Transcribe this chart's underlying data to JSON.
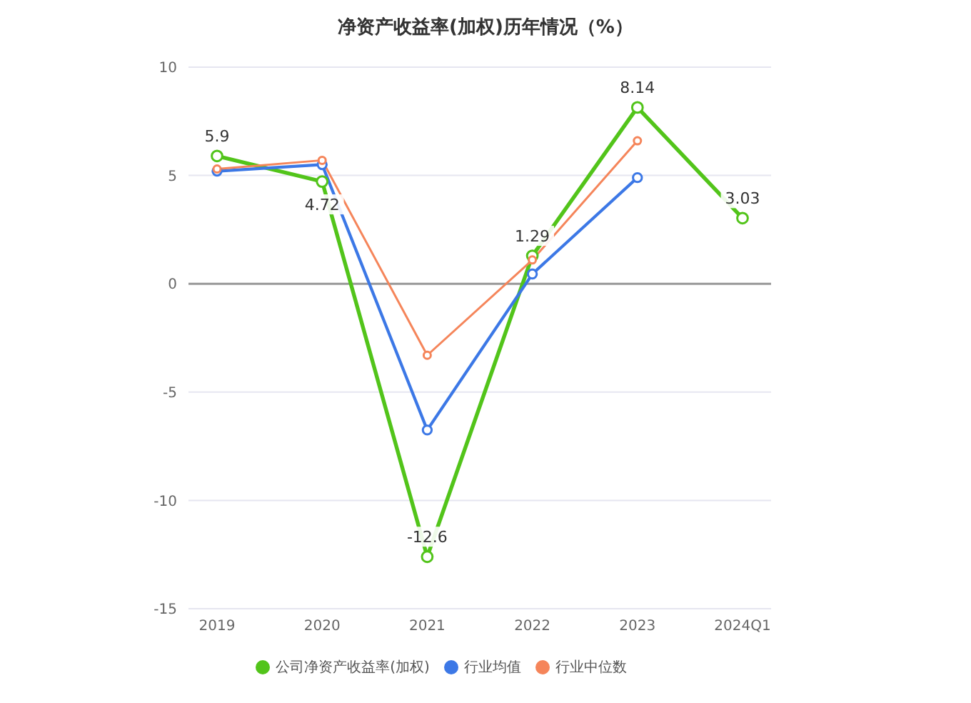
{
  "chart_data": {
    "type": "line",
    "title": "净资产收益率(加权)历年情况（%）",
    "categories": [
      "2019",
      "2020",
      "2021",
      "2022",
      "2023",
      "2024Q1"
    ],
    "series": [
      {
        "name": "公司净资产收益率(加权)",
        "color": "#52c41a",
        "values": [
          5.9,
          4.72,
          -12.6,
          1.29,
          8.14,
          3.03
        ],
        "value_labels": [
          "5.9",
          "4.72",
          "-12.6",
          "1.29",
          "8.14",
          "3.03"
        ]
      },
      {
        "name": "行业均值",
        "color": "#3c78e6",
        "values": [
          5.2,
          5.5,
          -6.75,
          0.45,
          4.9,
          null
        ]
      },
      {
        "name": "行业中位数",
        "color": "#f5855a",
        "values": [
          5.3,
          5.7,
          -3.3,
          1.1,
          6.6,
          null
        ]
      }
    ],
    "ylim": [
      -15,
      10
    ],
    "yticks": [
      -15,
      -10,
      -5,
      0,
      5,
      10
    ],
    "grid": "y",
    "legend": "bottom",
    "marker": "circle",
    "line_style": "solid"
  }
}
